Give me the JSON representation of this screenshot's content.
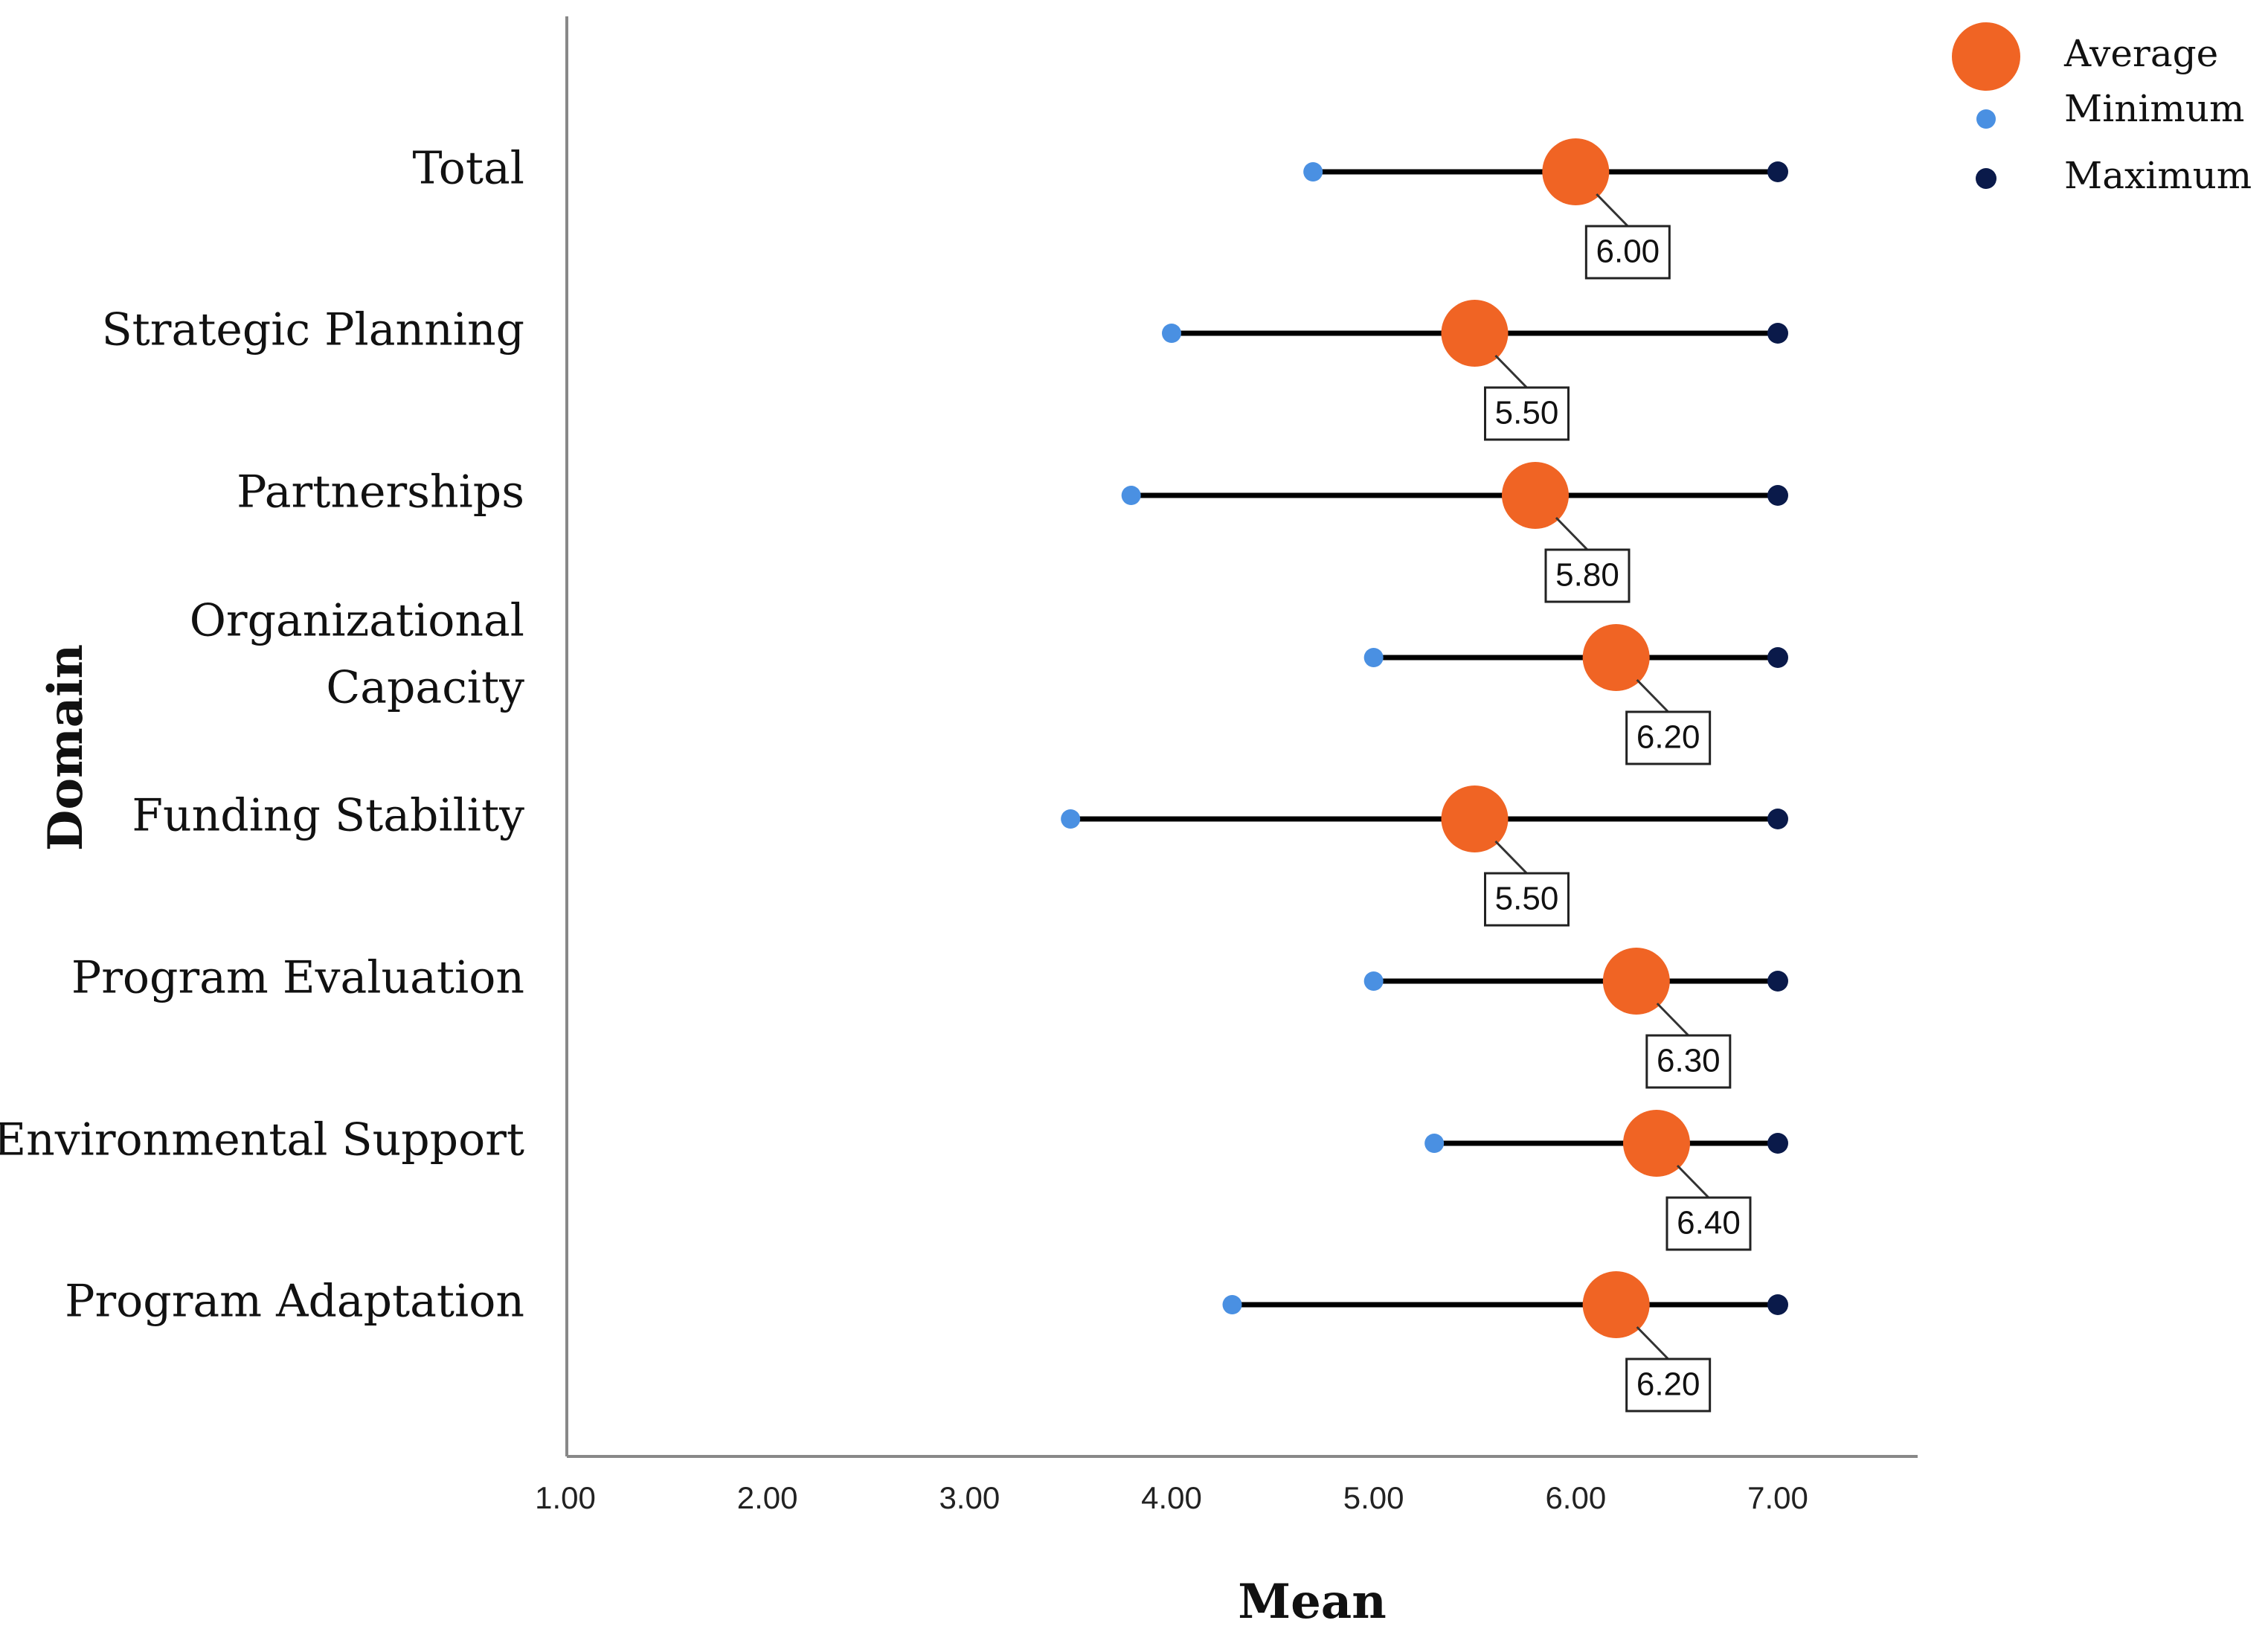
{
  "chart_data": {
    "type": "dot-range",
    "title": "",
    "xlabel": "Mean",
    "ylabel": "Domain",
    "xlim": [
      1.0,
      7.0
    ],
    "x_ticks": [
      "1.00",
      "2.00",
      "3.00",
      "4.00",
      "5.00",
      "6.00",
      "7.00"
    ],
    "categories": [
      [
        "Total"
      ],
      [
        "Strategic Planning"
      ],
      [
        "Partnerships"
      ],
      [
        "Organizational",
        "Capacity"
      ],
      [
        "Funding Stability"
      ],
      [
        "Program Evaluation"
      ],
      [
        "Environmental Support"
      ],
      [
        "Program Adaptation"
      ]
    ],
    "series": [
      {
        "name": "Average",
        "values": [
          6.0,
          5.5,
          5.8,
          6.2,
          5.5,
          6.3,
          6.4,
          6.2
        ],
        "color": "#f06424"
      },
      {
        "name": "Minimum",
        "values": [
          4.7,
          4.0,
          3.8,
          5.0,
          3.5,
          5.0,
          5.3,
          4.3
        ],
        "color": "#4a90e2"
      },
      {
        "name": "Maximum",
        "values": [
          7.0,
          7.0,
          7.0,
          7.0,
          7.0,
          7.0,
          7.0,
          7.0
        ],
        "color": "#0a1a4a"
      }
    ],
    "data_labels": [
      "6.00",
      "5.50",
      "5.80",
      "6.20",
      "5.50",
      "6.30",
      "6.40",
      "6.20"
    ],
    "legend": {
      "position": "top-right",
      "entries": [
        "Average",
        "Minimum",
        "Maximum"
      ]
    },
    "grid": false
  },
  "colors": {
    "range_line": "#000000",
    "axis": "#888888"
  }
}
